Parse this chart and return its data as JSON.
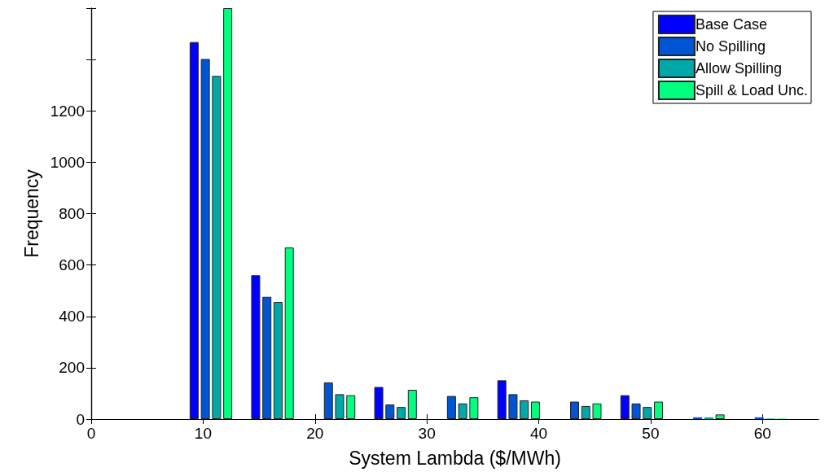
{
  "chart_data": {
    "type": "bar",
    "xlabel": "System Lambda ($/MWh)",
    "ylabel": "Frequency",
    "x": [
      10.7,
      16.2,
      21.7,
      27.2,
      32.7,
      38.2,
      43.7,
      49.2,
      54.7,
      60.2
    ],
    "series": [
      {
        "name": "Base Case",
        "color": "#0000ff",
        "values": [
          1468,
          560,
          null,
          125,
          null,
          151,
          null,
          93,
          null,
          null
        ]
      },
      {
        "name": "No Spilling",
        "color": "#0055d4",
        "values": [
          1402,
          476,
          143,
          57,
          90,
          97,
          68,
          61,
          7,
          7
        ]
      },
      {
        "name": "Allow Spilling",
        "color": "#00a8a8",
        "values": [
          1336,
          456,
          97,
          47,
          61,
          73,
          51,
          47,
          7,
          2
        ]
      },
      {
        "name": "Spill & Load Unc.",
        "color": "#00ff80",
        "values": [
          1600,
          668,
          93,
          114,
          85,
          68,
          61,
          68,
          18,
          2
        ]
      }
    ],
    "xlim": [
      0,
      65
    ],
    "xticks": [
      0,
      10,
      20,
      30,
      40,
      50,
      60
    ],
    "ylim": [
      0,
      1600
    ],
    "yticks": [
      0,
      200,
      400,
      600,
      800,
      1000,
      1200,
      {
        "value": 1400,
        "label": null
      },
      {
        "value": 1600,
        "label": null
      }
    ],
    "legend": "top right",
    "grid": false
  }
}
